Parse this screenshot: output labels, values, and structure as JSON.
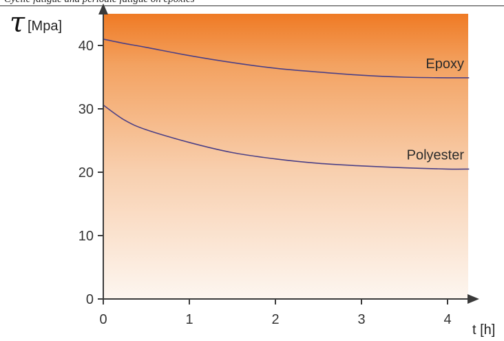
{
  "caption_fragment": "Cyclic fatigue and periodic fatigue on epoxies",
  "chart_data": {
    "type": "line",
    "title": "",
    "xlabel": "t [h]",
    "ylabel_symbol": "τ",
    "ylabel_unit": "[Mpa]",
    "xlim": [
      0,
      4.25
    ],
    "ylim": [
      0,
      45
    ],
    "x_ticks": [
      0,
      1,
      2,
      3,
      4
    ],
    "y_ticks": [
      0,
      10,
      20,
      30,
      40
    ],
    "grid": false,
    "background_gradient": [
      "#ef7a24",
      "#fdf6f0"
    ],
    "line_color": "#4a3f86",
    "series": [
      {
        "name": "Epoxy",
        "x": [
          0,
          0.25,
          0.5,
          1,
          1.5,
          2,
          2.5,
          3,
          3.5,
          4,
          4.25
        ],
        "y": [
          41,
          40.3,
          39.7,
          38.4,
          37.3,
          36.4,
          35.8,
          35.3,
          35.0,
          34.9,
          34.9
        ]
      },
      {
        "name": "Polyester",
        "x": [
          0,
          0.25,
          0.5,
          1,
          1.5,
          2,
          2.5,
          3,
          3.5,
          4,
          4.25
        ],
        "y": [
          30.6,
          28.2,
          26.7,
          24.7,
          23.1,
          22.1,
          21.4,
          21.0,
          20.7,
          20.5,
          20.5
        ]
      }
    ]
  }
}
